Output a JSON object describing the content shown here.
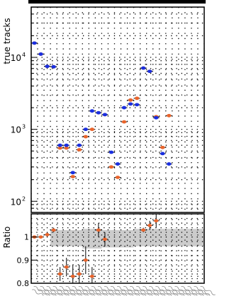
{
  "chart_data": [
    {
      "type": "scatter",
      "panel": "main",
      "ylabel": "true tracks",
      "yscale": "log",
      "ylim": [
        70,
        50000
      ],
      "ytick_labels": [
        "10",
        "10",
        "10"
      ],
      "ytick_exponents": [
        "2",
        "3",
        "4"
      ],
      "grid": true,
      "x": [
        1,
        2,
        3,
        4,
        5,
        6,
        7,
        8,
        9,
        10,
        11,
        12,
        13,
        14,
        15,
        16,
        17,
        18,
        19,
        20,
        21,
        22,
        23,
        24,
        25,
        26,
        27
      ],
      "series": [
        {
          "color": "#e8642c",
          "values": [
            15800,
            11100,
            7500,
            7400,
            550,
            550,
            220,
            520,
            790,
            1000,
            1700,
            1600,
            300,
            215,
            1270,
            2550,
            2700,
            7100,
            6400,
            1500,
            560,
            1550,
            null,
            null,
            null,
            null,
            null
          ]
        },
        {
          "color": "#1a2fe0",
          "values": [
            15800,
            11100,
            7500,
            7400,
            600,
            600,
            250,
            600,
            1000,
            1800,
            1700,
            1600,
            480,
            330,
            2000,
            2250,
            2200,
            7100,
            6400,
            1450,
            460,
            330,
            null,
            null,
            null,
            null,
            null
          ]
        }
      ]
    },
    {
      "type": "scatter",
      "panel": "ratio",
      "ylabel": "Ratio",
      "ylim": [
        0.8,
        1.1
      ],
      "ytick_labels": [
        "0.8",
        "0.9",
        "1"
      ],
      "grid": true,
      "x": [
        1,
        2,
        3,
        4,
        5,
        6,
        7,
        8,
        9,
        10,
        11,
        12,
        13,
        14,
        15,
        16,
        17,
        18,
        19,
        20,
        21,
        22,
        23,
        24,
        25,
        26,
        27
      ],
      "ratio": [
        1.0,
        1.0,
        1.01,
        1.03,
        0.84,
        0.87,
        0.83,
        0.84,
        0.9,
        0.83,
        1.03,
        0.99,
        null,
        null,
        null,
        null,
        null,
        1.03,
        1.05,
        1.07,
        null,
        null,
        null,
        null,
        null,
        null,
        null
      ],
      "ratio_err": [
        0.005,
        0.005,
        0.01,
        0.01,
        0.03,
        0.04,
        0.05,
        0.04,
        0.06,
        0.04,
        0.03,
        0.03,
        null,
        null,
        null,
        null,
        null,
        0.01,
        0.02,
        0.03,
        null,
        null,
        null,
        null,
        null,
        null,
        null
      ],
      "band_color": "#cccccc",
      "marker_color": "#e8642c"
    }
  ],
  "colors": {
    "grid": "#000000",
    "frame": "#000000",
    "band": "#cccccc",
    "xtick_text": "#888888"
  }
}
